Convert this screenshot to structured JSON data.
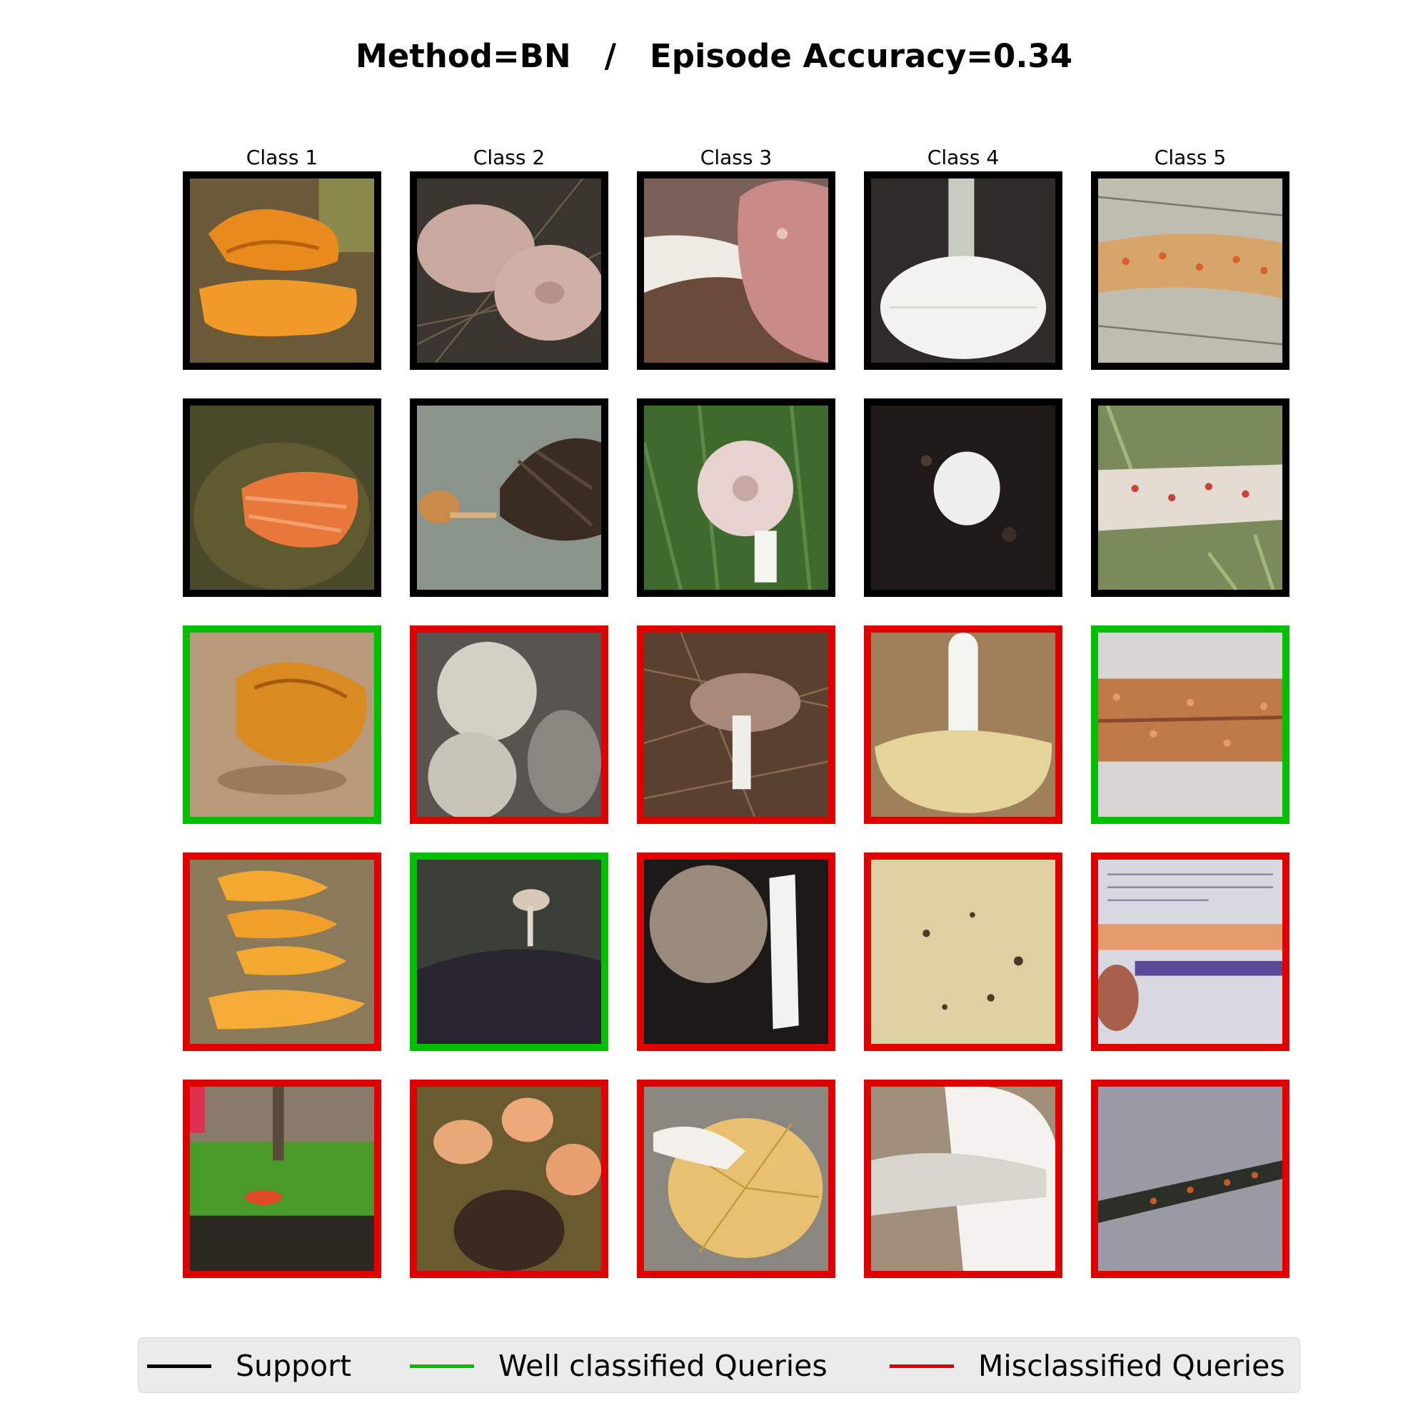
{
  "title": "Method=BN   /   Episode Accuracy=0.34",
  "columns": [
    "Class 1",
    "Class 2",
    "Class 3",
    "Class 4",
    "Class 5"
  ],
  "grid": [
    [
      {
        "status": "support",
        "scene": "orange-bracket-fungus-on-wood"
      },
      {
        "status": "support",
        "scene": "pale-mushroom-caps-in-pine-needles"
      },
      {
        "status": "support",
        "scene": "pink-cap-mushroom-on-table"
      },
      {
        "status": "support",
        "scene": "white-mushroom-underside-dark"
      },
      {
        "status": "support",
        "scene": "spotted-twig-on-newspaper"
      }
    ],
    [
      {
        "status": "support",
        "scene": "orange-fungus-on-stump"
      },
      {
        "status": "support",
        "scene": "small-mushroom-by-pinecone"
      },
      {
        "status": "support",
        "scene": "pink-mushroom-in-grass"
      },
      {
        "status": "support",
        "scene": "white-mushroom-on-dark-soil"
      },
      {
        "status": "support",
        "scene": "spotted-twig-in-grass"
      }
    ],
    [
      {
        "status": "well",
        "scene": "orange-fungus-on-board"
      },
      {
        "status": "mis",
        "scene": "grey-mushroom-caps"
      },
      {
        "status": "mis",
        "scene": "mushroom-in-pine-needles"
      },
      {
        "status": "mis",
        "scene": "yellow-cap-white-stem"
      },
      {
        "status": "well",
        "scene": "spotted-twig-closeup"
      }
    ],
    [
      {
        "status": "mis",
        "scene": "orange-shelf-fungus-stack"
      },
      {
        "status": "well",
        "scene": "tiny-mushroom-on-pinecone"
      },
      {
        "status": "mis",
        "scene": "brown-cap-and-white-stem"
      },
      {
        "status": "mis",
        "scene": "cream-cap-surface"
      },
      {
        "status": "mis",
        "scene": "spotted-twig-over-newspaper"
      }
    ],
    [
      {
        "status": "mis",
        "scene": "mossy-log-red-fungus"
      },
      {
        "status": "mis",
        "scene": "orange-mushrooms-on-cone"
      },
      {
        "status": "mis",
        "scene": "yellow-gills-mushroom"
      },
      {
        "status": "mis",
        "scene": "white-gills-underside"
      },
      {
        "status": "mis",
        "scene": "dark-twig-with-spots"
      }
    ]
  ],
  "legend": {
    "support": "Support",
    "well": "Well classified Queries",
    "mis": "Misclassified Queries"
  },
  "colors": {
    "support": "#000000",
    "well": "#00c000",
    "mis": "#e00000"
  }
}
